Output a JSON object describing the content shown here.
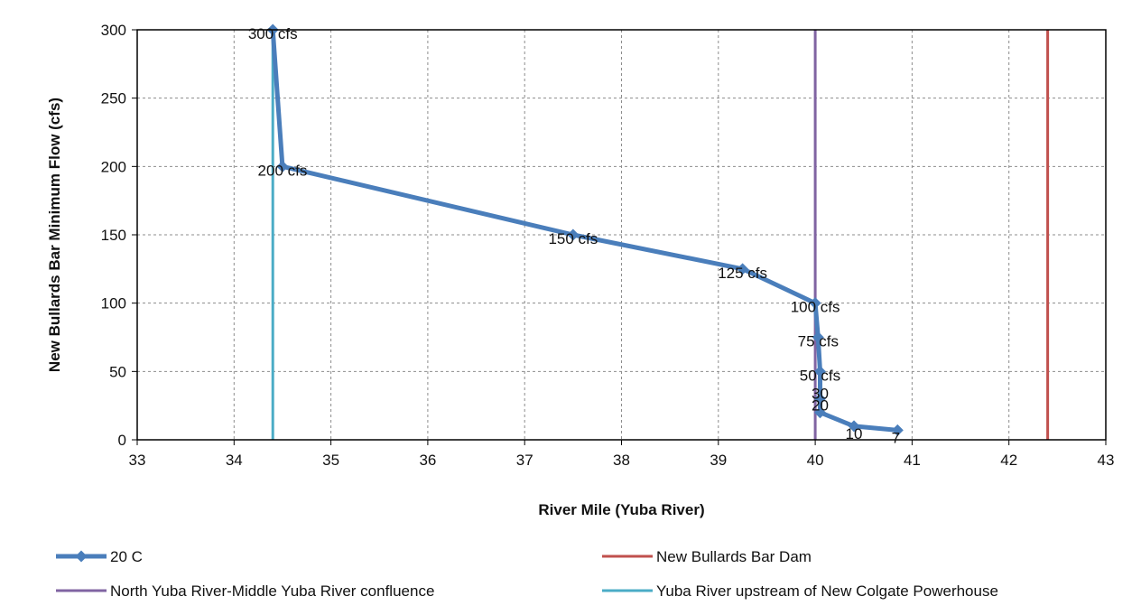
{
  "chart_data": {
    "type": "line",
    "title": "",
    "xlabel": "River Mile (Yuba River)",
    "ylabel": "New Bullards  Bar Minimum Flow (cfs)",
    "xlim": [
      33,
      43
    ],
    "ylim": [
      0,
      300
    ],
    "x_ticks": [
      "33",
      "34",
      "35",
      "36",
      "37",
      "38",
      "39",
      "40",
      "41",
      "42",
      "43"
    ],
    "y_ticks": [
      "0",
      "50",
      "100",
      "150",
      "200",
      "250",
      "300"
    ],
    "grid": true,
    "legend_position": "bottom",
    "series": [
      {
        "name": "20 C",
        "color": "#4a7ebb",
        "marker": "diamond",
        "x": [
          34.4,
          34.5,
          37.5,
          39.25,
          40.0,
          40.03,
          40.05,
          40.05,
          40.05,
          40.4,
          40.85
        ],
        "y": [
          300,
          200,
          150,
          125,
          100,
          75,
          50,
          30,
          20,
          10,
          7
        ],
        "labels": [
          "300 cfs",
          "200 cfs",
          "150 cfs",
          "125 cfs",
          "100 cfs",
          "75 cfs",
          "50 cfs",
          "30",
          "20",
          "10",
          "7"
        ]
      }
    ],
    "reference_lines": [
      {
        "name": "New Bullards Bar Dam",
        "x": 42.4,
        "color": "#c0504d"
      },
      {
        "name": "North Yuba River-Middle Yuba River confluence",
        "x": 40.0,
        "color": "#8064a2"
      },
      {
        "name": "Yuba River upstream of New Colgate Powerhouse",
        "x": 34.4,
        "color": "#4bacc6"
      }
    ],
    "legend": [
      {
        "label": "20 C",
        "color": "#4a7ebb",
        "marker": true
      },
      {
        "label": "New Bullards Bar Dam",
        "color": "#c0504d",
        "marker": false
      },
      {
        "label": "North Yuba River-Middle Yuba River confluence",
        "color": "#8064a2",
        "marker": false
      },
      {
        "label": "Yuba River upstream of New Colgate Powerhouse",
        "color": "#4bacc6",
        "marker": false
      }
    ]
  }
}
